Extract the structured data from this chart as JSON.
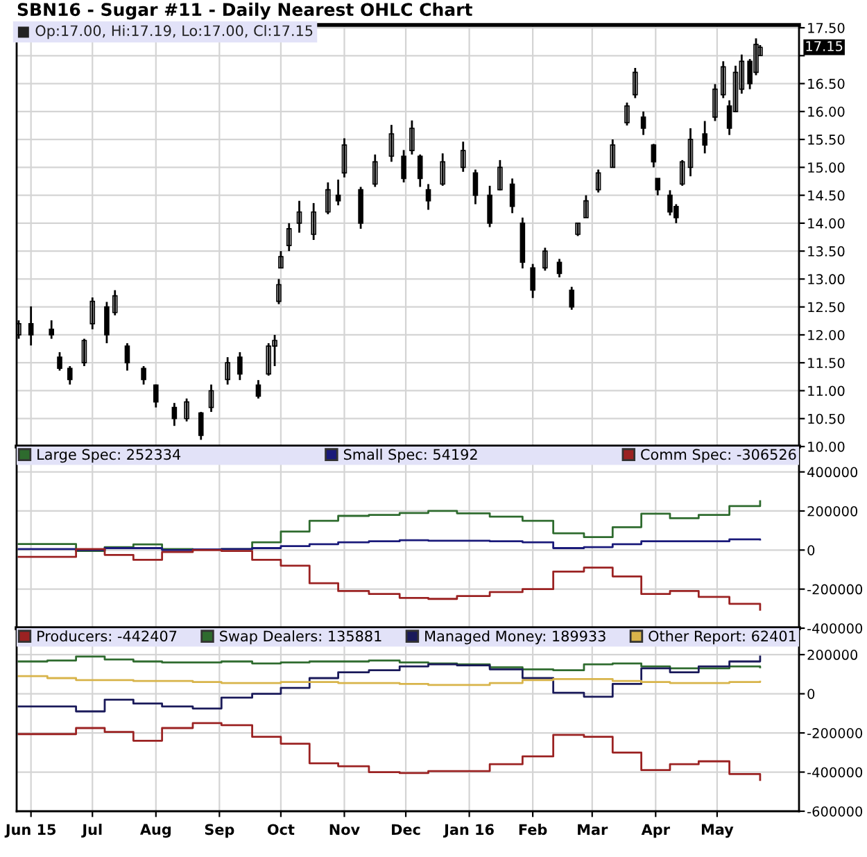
{
  "chart_data": [
    {
      "type": "candlestick",
      "title": "SBN16 - Sugar #11 - Daily Nearest OHLC Chart",
      "annotations": [
        "■ Op:17.00, Hi:17.19, Lo:17.00, Cl:17.15",
        "17.15"
      ],
      "x": [
        "2015-05-26",
        "2015-06-01",
        "2015-06-11",
        "2015-06-15",
        "2015-06-20",
        "2015-06-27",
        "2015-07-01",
        "2015-07-08",
        "2015-07-12",
        "2015-07-18",
        "2015-07-26",
        "2015-08-01",
        "2015-08-10",
        "2015-08-16",
        "2015-08-23",
        "2015-08-28",
        "2015-09-05",
        "2015-09-11",
        "2015-09-20",
        "2015-09-25",
        "2015-09-28",
        "2015-09-30",
        "2015-10-01",
        "2015-10-05",
        "2015-10-10",
        "2015-10-17",
        "2015-10-24",
        "2015-10-29",
        "2015-11-01",
        "2015-11-09",
        "2015-11-16",
        "2015-11-24",
        "2015-11-30",
        "2015-12-04",
        "2015-12-08",
        "2015-12-12",
        "2015-12-19",
        "2015-12-29",
        "2016-01-04",
        "2016-01-11",
        "2016-01-16",
        "2016-01-22",
        "2016-01-27",
        "2016-02-01",
        "2016-02-07",
        "2016-02-14",
        "2016-02-20",
        "2016-02-23",
        "2016-02-27",
        "2016-03-04",
        "2016-03-11",
        "2016-03-18",
        "2016-03-22",
        "2016-03-26",
        "2016-03-31",
        "2016-04-02",
        "2016-04-08",
        "2016-04-11",
        "2016-04-14",
        "2016-04-18",
        "2016-04-25",
        "2016-04-30",
        "2016-05-04",
        "2016-05-07",
        "2016-05-10",
        "2016-05-13",
        "2016-05-17",
        "2016-05-20",
        "2016-05-22"
      ],
      "ohlc": [
        [
          12.0,
          12.26,
          11.93,
          12.2
        ],
        [
          12.2,
          12.51,
          11.81,
          12.0
        ],
        [
          12.1,
          12.26,
          11.93,
          12.0
        ],
        [
          11.6,
          11.69,
          11.36,
          11.4
        ],
        [
          11.4,
          11.44,
          11.11,
          11.2
        ],
        [
          11.5,
          11.93,
          11.44,
          11.9
        ],
        [
          12.2,
          12.67,
          12.1,
          12.6
        ],
        [
          12.5,
          12.59,
          11.85,
          12.0
        ],
        [
          12.4,
          12.8,
          12.35,
          12.7
        ],
        [
          11.8,
          11.85,
          11.36,
          11.5
        ],
        [
          11.4,
          11.44,
          11.11,
          11.2
        ],
        [
          11.1,
          11.11,
          10.7,
          10.8
        ],
        [
          10.7,
          10.78,
          10.37,
          10.5
        ],
        [
          10.5,
          10.86,
          10.45,
          10.8
        ],
        [
          10.6,
          10.62,
          10.12,
          10.2
        ],
        [
          10.7,
          11.11,
          10.62,
          11.0
        ],
        [
          11.2,
          11.6,
          11.11,
          11.5
        ],
        [
          11.6,
          11.69,
          11.19,
          11.3
        ],
        [
          11.1,
          11.19,
          10.86,
          10.9
        ],
        [
          11.3,
          11.85,
          11.27,
          11.8
        ],
        [
          11.8,
          12.0,
          11.44,
          11.9
        ],
        [
          12.6,
          13.0,
          12.55,
          12.9
        ],
        [
          13.2,
          13.5,
          13.2,
          13.4
        ],
        [
          13.6,
          14.0,
          13.5,
          13.9
        ],
        [
          14.0,
          14.4,
          13.83,
          14.2
        ],
        [
          13.8,
          14.36,
          13.7,
          14.2
        ],
        [
          14.2,
          14.73,
          14.16,
          14.6
        ],
        [
          14.5,
          14.78,
          14.32,
          14.4
        ],
        [
          14.9,
          15.52,
          14.82,
          15.4
        ],
        [
          14.6,
          14.65,
          13.9,
          14.0
        ],
        [
          14.7,
          15.23,
          14.65,
          15.1
        ],
        [
          15.2,
          15.76,
          15.1,
          15.6
        ],
        [
          15.2,
          15.31,
          14.73,
          14.8
        ],
        [
          15.3,
          15.84,
          15.23,
          15.7
        ],
        [
          15.2,
          15.23,
          14.65,
          14.8
        ],
        [
          14.6,
          14.7,
          14.24,
          14.4
        ],
        [
          14.7,
          15.25,
          14.67,
          15.1
        ],
        [
          15.0,
          15.46,
          14.92,
          15.3
        ],
        [
          14.9,
          14.96,
          14.34,
          14.5
        ],
        [
          14.5,
          14.67,
          13.93,
          14.0
        ],
        [
          14.6,
          15.13,
          14.59,
          15.0
        ],
        [
          14.7,
          14.8,
          14.18,
          14.3
        ],
        [
          14.0,
          14.1,
          13.19,
          13.3
        ],
        [
          13.2,
          13.27,
          12.66,
          12.8
        ],
        [
          13.2,
          13.56,
          13.15,
          13.5
        ],
        [
          13.3,
          13.36,
          13.03,
          13.1
        ],
        [
          12.8,
          12.86,
          12.45,
          12.5
        ],
        [
          13.8,
          14.0,
          13.77,
          14.0
        ],
        [
          14.1,
          14.5,
          14.1,
          14.4
        ],
        [
          14.6,
          14.96,
          14.55,
          14.9
        ],
        [
          15.0,
          15.5,
          15.0,
          15.4
        ],
        [
          15.8,
          16.16,
          15.75,
          16.1
        ],
        [
          16.3,
          16.78,
          16.24,
          16.7
        ],
        [
          15.9,
          16.0,
          15.58,
          15.7
        ],
        [
          15.4,
          15.42,
          15.0,
          15.1
        ],
        [
          14.8,
          14.8,
          14.5,
          14.6
        ],
        [
          14.5,
          14.59,
          14.14,
          14.2
        ],
        [
          14.3,
          14.34,
          14.0,
          14.1
        ],
        [
          14.7,
          15.13,
          14.67,
          15.1
        ],
        [
          15.0,
          15.7,
          14.84,
          15.5
        ],
        [
          15.6,
          15.83,
          15.25,
          15.4
        ],
        [
          15.9,
          16.49,
          15.83,
          16.4
        ],
        [
          16.3,
          16.9,
          16.24,
          16.8
        ],
        [
          16.1,
          16.2,
          15.58,
          15.7
        ],
        [
          16.0,
          16.82,
          15.99,
          16.7
        ],
        [
          16.4,
          17.02,
          16.32,
          16.9
        ],
        [
          16.9,
          16.94,
          16.4,
          16.5
        ],
        [
          16.7,
          17.31,
          16.65,
          17.2
        ],
        [
          17.0,
          17.19,
          17.0,
          17.15
        ]
      ],
      "color": "#000000",
      "xlim": [
        "2015-05-25",
        "2016-06-10"
      ],
      "xticks": [
        {
          "value": "2015-06-01",
          "label": null
        },
        {
          "value": "2015-07-01",
          "label": null
        },
        {
          "value": "2015-08-01",
          "label": null
        },
        {
          "value": "2015-09-01",
          "label": null
        },
        {
          "value": "2015-10-01",
          "label": null
        },
        {
          "value": "2015-11-01",
          "label": null
        },
        {
          "value": "2015-12-01",
          "label": null
        },
        {
          "value": "2016-01-01",
          "label": null
        },
        {
          "value": "2016-02-01",
          "label": null
        },
        {
          "value": "2016-03-01",
          "label": null
        },
        {
          "value": "2016-04-01",
          "label": null
        },
        {
          "value": "2016-05-01",
          "label": null
        }
      ],
      "ylim": [
        10.0,
        17.55
      ],
      "yticks": [
        {
          "value": 10,
          "label": "10.00"
        },
        {
          "value": 10.5,
          "label": "10.50"
        },
        {
          "value": 11,
          "label": "11.00"
        },
        {
          "value": 11.5,
          "label": "11.50"
        },
        {
          "value": 12,
          "label": "12.00"
        },
        {
          "value": 12.5,
          "label": "12.50"
        },
        {
          "value": 13,
          "label": "13.00"
        },
        {
          "value": 13.5,
          "label": "13.50"
        },
        {
          "value": 14,
          "label": "14.00"
        },
        {
          "value": 14.5,
          "label": "14.50"
        },
        {
          "value": 15,
          "label": "15.00"
        },
        {
          "value": 15.5,
          "label": "15.50"
        },
        {
          "value": 16,
          "label": "16.00"
        },
        {
          "value": 16.5,
          "label": "16.50"
        },
        {
          "value": 17,
          "label": null
        },
        {
          "value": 17.5,
          "label": "17.50"
        }
      ],
      "grid": true,
      "tick_labels": "y"
    },
    {
      "type": "step",
      "x": [
        "2015-05-26",
        "2015-06-09",
        "2015-06-23",
        "2015-07-07",
        "2015-07-21",
        "2015-08-04",
        "2015-08-19",
        "2015-09-02",
        "2015-09-17",
        "2015-10-01",
        "2015-10-15",
        "2015-10-29",
        "2015-11-13",
        "2015-11-28",
        "2015-12-12",
        "2015-12-26",
        "2016-01-11",
        "2016-01-27",
        "2016-02-11",
        "2016-02-26",
        "2016-03-11",
        "2016-03-25",
        "2016-04-08",
        "2016-04-22",
        "2016-05-07",
        "2016-05-22"
      ],
      "series": [
        {
          "name": "Large Spec: 252334",
          "color": "#2e6b2e",
          "values": [
            31000,
            31000,
            -5000,
            15000,
            29000,
            5000,
            3000,
            5000,
            40000,
            95000,
            150000,
            175000,
            180000,
            190000,
            200000,
            188000,
            171000,
            150000,
            86000,
            66000,
            117000,
            186000,
            163000,
            180000,
            225000,
            250000
          ]
        },
        {
          "name": "Small Spec: 54192",
          "color": "#1a1a7a",
          "values": [
            5000,
            5000,
            0,
            10000,
            10000,
            0,
            3000,
            5000,
            10000,
            20000,
            30000,
            40000,
            45000,
            50000,
            48000,
            48000,
            45000,
            40000,
            10000,
            15000,
            30000,
            45000,
            45000,
            45000,
            55000,
            54000
          ]
        },
        {
          "name": "Comm Spec: -306526",
          "color": "#9b2222",
          "values": [
            -35000,
            -35000,
            5000,
            -25000,
            -50000,
            -10000,
            0,
            -5000,
            -50000,
            -80000,
            -170000,
            -210000,
            -225000,
            -245000,
            -250000,
            -235000,
            -215000,
            -200000,
            -110000,
            -90000,
            -135000,
            -225000,
            -210000,
            -240000,
            -275000,
            -305000
          ]
        }
      ],
      "xlim": [
        "2015-05-25",
        "2016-06-10"
      ],
      "xticks": [
        {
          "value": "2015-06-01",
          "label": null
        },
        {
          "value": "2015-07-01",
          "label": null
        },
        {
          "value": "2015-08-01",
          "label": null
        },
        {
          "value": "2015-09-01",
          "label": null
        },
        {
          "value": "2015-10-01",
          "label": null
        },
        {
          "value": "2015-11-01",
          "label": null
        },
        {
          "value": "2015-12-01",
          "label": null
        },
        {
          "value": "2016-01-01",
          "label": null
        },
        {
          "value": "2016-02-01",
          "label": null
        },
        {
          "value": "2016-03-01",
          "label": null
        },
        {
          "value": "2016-04-01",
          "label": null
        },
        {
          "value": "2016-05-01",
          "label": null
        }
      ],
      "ylim": [
        -400000,
        530000
      ],
      "yticks": [
        -400000,
        -200000,
        0,
        200000,
        400000
      ],
      "grid": true,
      "legend": "top left",
      "tick_labels": "y"
    },
    {
      "type": "step",
      "x": [
        "2015-05-26",
        "2015-06-09",
        "2015-06-23",
        "2015-07-07",
        "2015-07-21",
        "2015-08-04",
        "2015-08-19",
        "2015-09-02",
        "2015-09-17",
        "2015-10-01",
        "2015-10-15",
        "2015-10-29",
        "2015-11-13",
        "2015-11-28",
        "2015-12-12",
        "2015-12-26",
        "2016-01-11",
        "2016-01-27",
        "2016-02-11",
        "2016-02-26",
        "2016-03-11",
        "2016-03-25",
        "2016-04-08",
        "2016-04-22",
        "2016-05-07",
        "2016-05-22"
      ],
      "series": [
        {
          "name": "Producers: -442407",
          "color": "#9b2222",
          "values": [
            -206000,
            -206000,
            -175000,
            -195000,
            -240000,
            -175000,
            -150000,
            -160000,
            -220000,
            -255000,
            -355000,
            -370000,
            -400000,
            -405000,
            -395000,
            -395000,
            -360000,
            -320000,
            -210000,
            -220000,
            -300000,
            -390000,
            -360000,
            -345000,
            -410000,
            -440000
          ]
        },
        {
          "name": "Swap Dealers: 135881",
          "color": "#2e6b2e",
          "values": [
            165000,
            170000,
            190000,
            175000,
            165000,
            160000,
            160000,
            165000,
            155000,
            160000,
            165000,
            165000,
            170000,
            160000,
            155000,
            150000,
            135000,
            125000,
            120000,
            150000,
            155000,
            140000,
            130000,
            130000,
            140000,
            135000
          ]
        },
        {
          "name": "Managed Money: 189933",
          "color": "#1a1a5a",
          "values": [
            -65000,
            -65000,
            -90000,
            -30000,
            -50000,
            -65000,
            -75000,
            -20000,
            0,
            30000,
            80000,
            110000,
            120000,
            140000,
            150000,
            145000,
            125000,
            80000,
            5000,
            -15000,
            50000,
            130000,
            110000,
            140000,
            165000,
            190000
          ]
        },
        {
          "name": "Other Report: 62401",
          "color": "#d8b44a",
          "values": [
            90000,
            80000,
            70000,
            70000,
            65000,
            65000,
            60000,
            55000,
            55000,
            60000,
            60000,
            55000,
            55000,
            50000,
            45000,
            45000,
            55000,
            70000,
            75000,
            75000,
            65000,
            60000,
            55000,
            55000,
            60000,
            62000
          ]
        }
      ],
      "xlim": [
        "2015-05-25",
        "2016-06-10"
      ],
      "xticks": [
        {
          "value": "2015-06-01",
          "label": "Jun 15"
        },
        {
          "value": "2015-07-01",
          "label": "Jul"
        },
        {
          "value": "2015-08-01",
          "label": "Aug"
        },
        {
          "value": "2015-09-01",
          "label": "Sep"
        },
        {
          "value": "2015-10-01",
          "label": "Oct"
        },
        {
          "value": "2015-11-01",
          "label": "Nov"
        },
        {
          "value": "2015-12-01",
          "label": "Dec"
        },
        {
          "value": "2016-01-01",
          "label": "Jan 16"
        },
        {
          "value": "2016-02-01",
          "label": "Feb"
        },
        {
          "value": "2016-03-01",
          "label": "Mar"
        },
        {
          "value": "2016-04-01",
          "label": "Apr"
        },
        {
          "value": "2016-05-01",
          "label": "May"
        }
      ],
      "ylim": [
        -600000,
        335000
      ],
      "yticks": [
        -600000,
        -400000,
        -200000,
        0,
        200000
      ],
      "grid": true,
      "legend": "top left"
    }
  ]
}
